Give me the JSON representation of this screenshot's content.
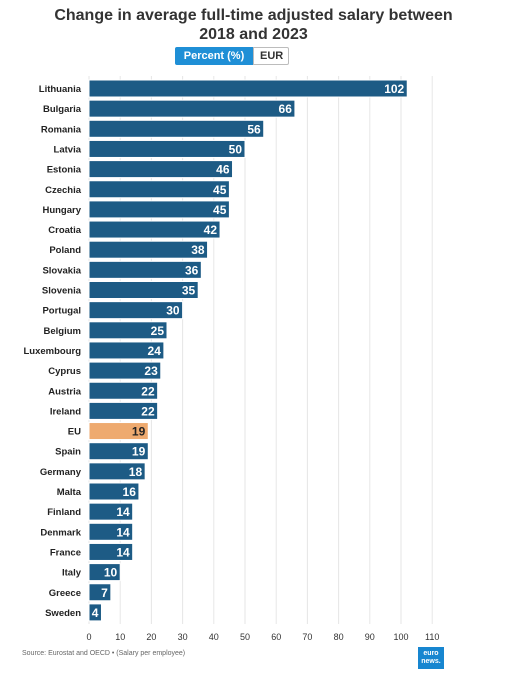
{
  "page": {
    "title_line1": "Change in average full-time adjusted salary between",
    "title_line2": "2018 and 2023",
    "toggle": {
      "active_label": "Percent (%)",
      "inactive_label": "EUR"
    },
    "source": "Source: Eurostat and OECD • (Salary per employee)",
    "logo_line1": "euro",
    "logo_line2": "news."
  },
  "colors": {
    "bar": "#1d5b85",
    "highlight": "#eeaa6f",
    "label_light": "#ffffff",
    "label_dark": "#222222"
  },
  "chart_data": {
    "type": "bar",
    "orientation": "horizontal",
    "categories": [
      "Lithuania",
      "Bulgaria",
      "Romania",
      "Latvia",
      "Estonia",
      "Czechia",
      "Hungary",
      "Croatia",
      "Poland",
      "Slovakia",
      "Slovenia",
      "Portugal",
      "Belgium",
      "Luxembourg",
      "Cyprus",
      "Austria",
      "Ireland",
      "EU",
      "Spain",
      "Germany",
      "Malta",
      "Finland",
      "Denmark",
      "France",
      "Italy",
      "Greece",
      "Sweden"
    ],
    "values": [
      102,
      66,
      56,
      50,
      46,
      45,
      45,
      42,
      38,
      36,
      35,
      30,
      25,
      24,
      23,
      22,
      22,
      19,
      19,
      18,
      16,
      14,
      14,
      14,
      10,
      7,
      4
    ],
    "highlight": "EU",
    "xlim": [
      0,
      110
    ],
    "xticks": [
      0,
      10,
      20,
      30,
      40,
      50,
      60,
      70,
      80,
      90,
      100,
      110
    ],
    "grid": true
  }
}
